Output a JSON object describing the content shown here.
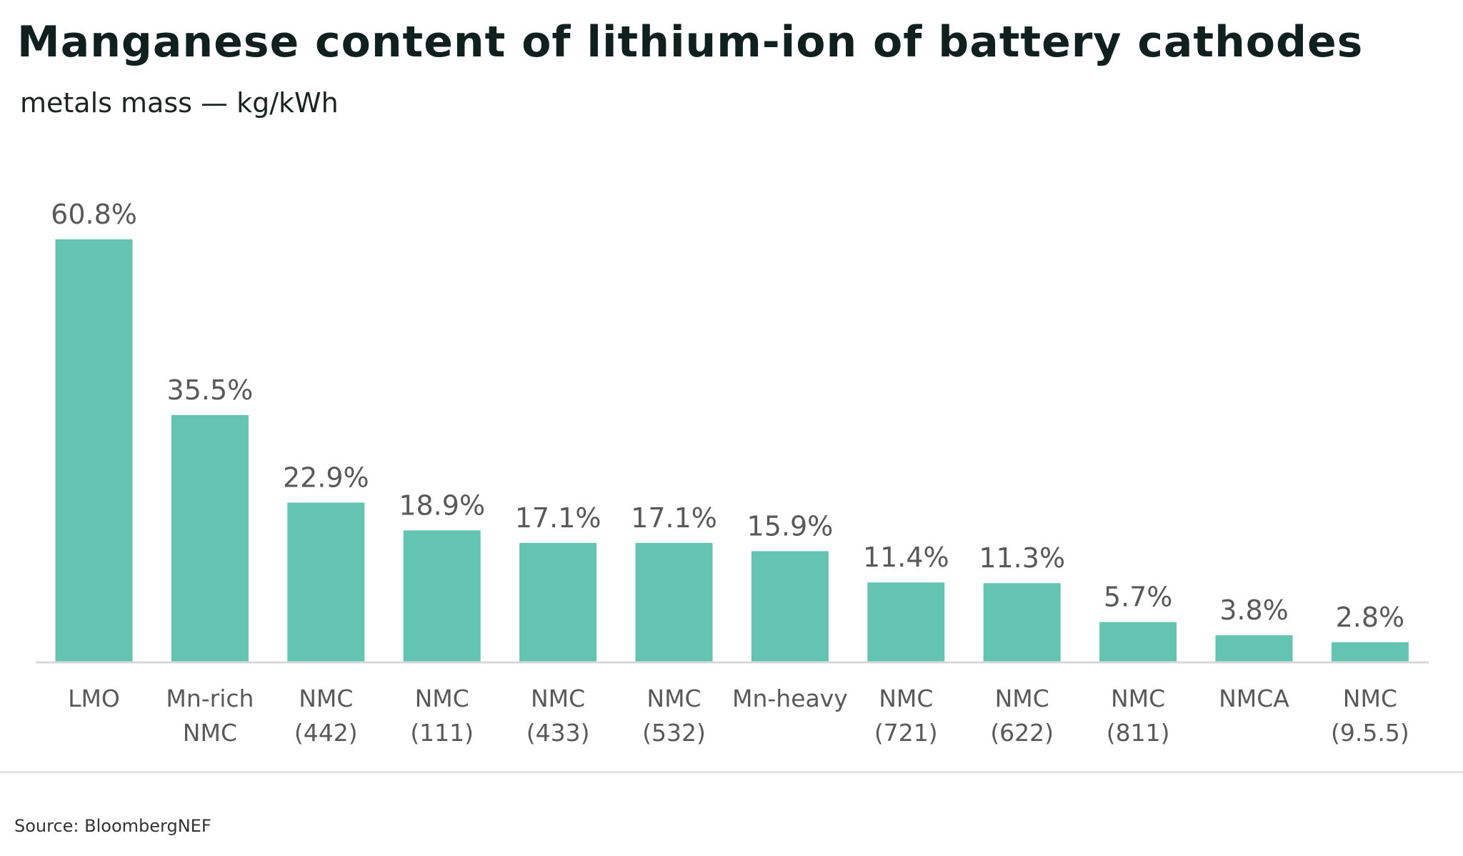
{
  "title": "Manganese content of lithium-ion of battery cathodes",
  "subtitle": "metals mass — kg/kWh",
  "source": "Source: BloombergNEF",
  "colors": {
    "bar": "#62c4b1",
    "axis": "#d9d9d9",
    "label": "#595959"
  },
  "chart_data": {
    "type": "bar",
    "title": "Manganese content of lithium-ion of battery cathodes",
    "subtitle": "metals mass — kg/kWh",
    "unit": "%",
    "categories": [
      [
        "LMO"
      ],
      [
        "Mn-rich",
        "NMC"
      ],
      [
        "NMC",
        "(442)"
      ],
      [
        "NMC",
        "(111)"
      ],
      [
        "NMC",
        "(433)"
      ],
      [
        "NMC",
        "(532)"
      ],
      [
        "Mn-heavy"
      ],
      [
        "NMC",
        "(721)"
      ],
      [
        "NMC",
        "(622)"
      ],
      [
        "NMC",
        "(811)"
      ],
      [
        "NMCA"
      ],
      [
        "NMC",
        "(9.5.5)"
      ]
    ],
    "values": [
      60.8,
      35.5,
      22.9,
      18.9,
      17.1,
      17.1,
      15.9,
      11.4,
      11.3,
      5.7,
      3.8,
      2.8
    ],
    "data_labels": [
      "60.8%",
      "35.5%",
      "22.9%",
      "18.9%",
      "17.1%",
      "17.1%",
      "15.9%",
      "11.4%",
      "11.3%",
      "5.7%",
      "3.8%",
      "2.8%"
    ],
    "ylim": [
      0,
      60.8
    ],
    "grid": false,
    "legend": "none"
  }
}
